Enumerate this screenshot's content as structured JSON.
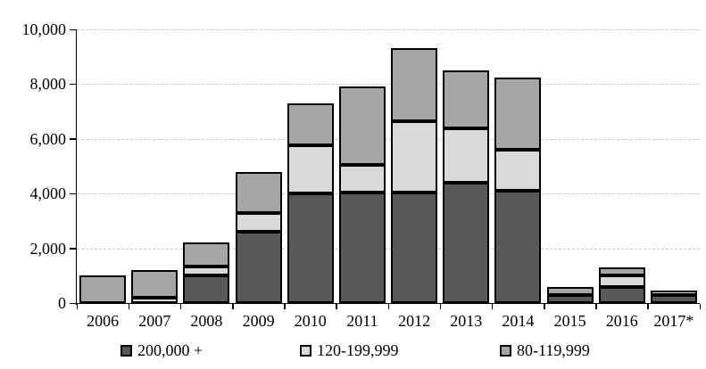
{
  "chart_data": {
    "type": "bar",
    "stacked": true,
    "title": "",
    "xlabel": "",
    "ylabel": "",
    "ylim": [
      0,
      10000
    ],
    "ytick_interval": 2000,
    "ytick_labels": [
      "0",
      "2,000",
      "4,000",
      "6,000",
      "8,000",
      "10,000"
    ],
    "grid": "horizontal-dashed",
    "legend_position": "bottom",
    "categories": [
      "2006",
      "2007",
      "2008",
      "2009",
      "2010",
      "2011",
      "2012",
      "2013",
      "2014",
      "2015",
      "2016",
      "2017*"
    ],
    "series": [
      {
        "name": "200,000 +",
        "color": "#595959",
        "values": [
          0,
          0,
          1000,
          2600,
          4000,
          4050,
          4050,
          4400,
          4100,
          300,
          600,
          300
        ]
      },
      {
        "name": "120-199,999",
        "color": "#d9d9d9",
        "values": [
          0,
          200,
          350,
          700,
          1750,
          1000,
          2600,
          2000,
          1500,
          0,
          400,
          150
        ]
      },
      {
        "name": "80-119,999",
        "color": "#a6a6a6",
        "values": [
          1000,
          1000,
          850,
          1500,
          1550,
          2850,
          2650,
          2100,
          2650,
          300,
          300,
          0
        ]
      }
    ],
    "totals": [
      1000,
      1200,
      2200,
      4800,
      7300,
      7900,
      9300,
      8500,
      8250,
      600,
      1300,
      450
    ],
    "colors": {
      "axis": "#000000",
      "gridline": "#c9c9c9",
      "background": "#ffffff",
      "segment_border": "#000000"
    }
  }
}
